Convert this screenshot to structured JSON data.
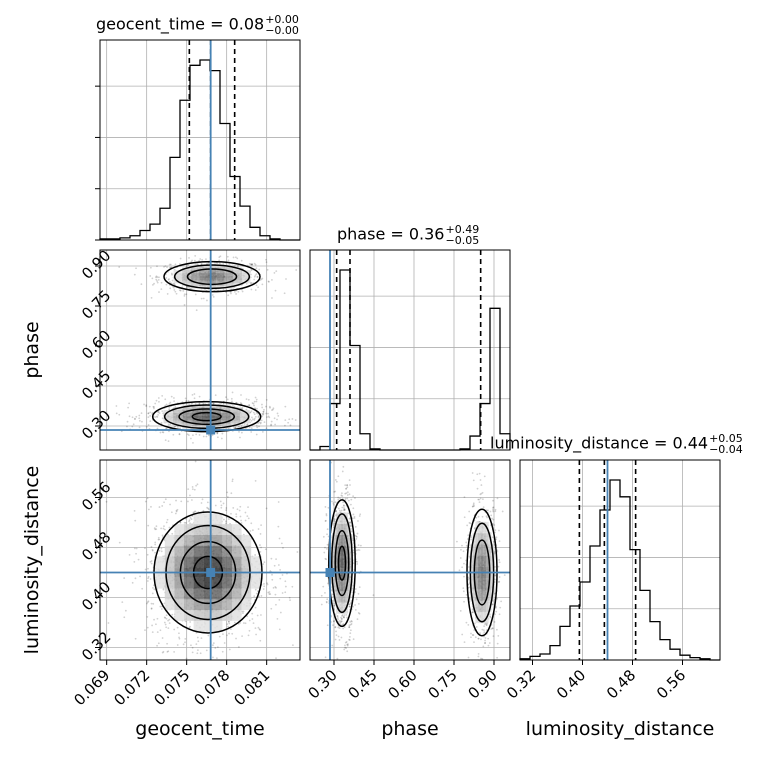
{
  "colors": {
    "truth": "#4682b4",
    "hist": "#000000",
    "grid": "#b0b0b0",
    "quantile": "#000000"
  },
  "chart_data": {
    "type": "corner",
    "parameters": [
      {
        "name": "geocent_time",
        "label": "geocent_time",
        "title": "geocent_time = 0.08",
        "title_plus": "+0.00",
        "title_minus": "−0.00",
        "range": [
          0.0685,
          0.0835
        ],
        "ticks": [
          0.069,
          0.072,
          0.075,
          0.078,
          0.081
        ],
        "tick_labels": [
          "0.069",
          "0.072",
          "0.075",
          "0.078",
          "0.081"
        ],
        "truth": 0.0768,
        "quantiles": [
          0.0752,
          0.0768,
          0.0786
        ],
        "hist_counts": [
          1,
          1,
          2,
          4,
          9,
          15,
          30,
          78,
          132,
          165,
          170,
          160,
          110,
          60,
          32,
          12,
          4,
          1,
          0,
          0
        ]
      },
      {
        "name": "phase",
        "label": "phase",
        "title": "phase = 0.36",
        "title_plus": "+0.49",
        "title_minus": "−0.05",
        "range": [
          0.21,
          0.96
        ],
        "ticks": [
          0.3,
          0.45,
          0.6,
          0.75,
          0.9
        ],
        "tick_labels": [
          "0.30",
          "0.45",
          "0.60",
          "0.75",
          "0.90"
        ],
        "truth": 0.285,
        "quantiles": [
          0.31,
          0.36,
          0.85
        ],
        "hist_counts": [
          0,
          3,
          40,
          155,
          90,
          14,
          1,
          0,
          0,
          0,
          0,
          0,
          0,
          0,
          0,
          1,
          12,
          40,
          122,
          14
        ]
      },
      {
        "name": "luminosity_distance",
        "label": "luminosity_distance",
        "title": "luminosity_distance = 0.44",
        "title_plus": "+0.05",
        "title_minus": "−0.04",
        "range": [
          0.3,
          0.62
        ],
        "ticks": [
          0.32,
          0.4,
          0.48,
          0.56
        ],
        "tick_labels": [
          "0.32",
          "0.40",
          "0.48",
          "0.56"
        ],
        "truth": 0.44,
        "quantiles": [
          0.395,
          0.435,
          0.485
        ],
        "hist_counts": [
          1,
          3,
          5,
          12,
          28,
          45,
          65,
          95,
          125,
          150,
          136,
          92,
          58,
          32,
          17,
          9,
          4,
          2,
          1,
          0
        ]
      }
    ],
    "blobs": {
      "phase_vs_geocent_time": [
        {
          "x": 0.0769,
          "y": 0.86,
          "sx": 0.0016,
          "sy": 0.025,
          "w": 0.42
        },
        {
          "x": 0.0765,
          "y": 0.335,
          "sx": 0.0018,
          "sy": 0.025,
          "w": 0.58
        }
      ],
      "luminosity_distance_vs_geocent_time": [
        {
          "x": 0.0766,
          "y": 0.44,
          "sx": 0.0018,
          "sy": 0.043,
          "w": 1.0
        }
      ],
      "luminosity_distance_vs_phase": [
        {
          "x": 0.33,
          "y": 0.455,
          "sx": 0.022,
          "sy": 0.045,
          "w": 0.58
        },
        {
          "x": 0.855,
          "y": 0.44,
          "sx": 0.025,
          "sy": 0.045,
          "w": 0.42
        }
      ]
    },
    "grid": true,
    "legend": "none"
  }
}
